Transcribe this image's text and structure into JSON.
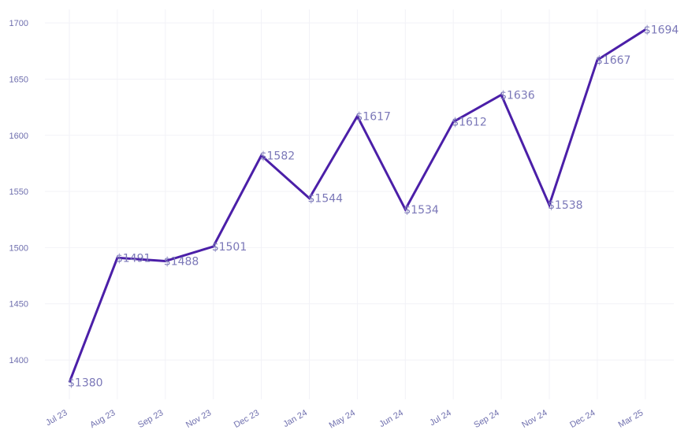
{
  "chart_data": {
    "type": "line",
    "categories": [
      "Jul 23",
      "Aug 23",
      "Sep 23",
      "Nov 23",
      "Dec 23",
      "Jan 24",
      "May 24",
      "Jun 24",
      "Jul 24",
      "Sep 24",
      "Nov 24",
      "Dec 24",
      "Mar 25"
    ],
    "series": [
      {
        "values": [
          1380,
          1491,
          1488,
          1501,
          1582,
          1544,
          1617,
          1534,
          1612,
          1636,
          1538,
          1667,
          1694
        ],
        "labels": [
          "$1380",
          "$1491",
          "$1488",
          "$1501",
          "$1582",
          "$1544",
          "$1617",
          "$1534",
          "$1612",
          "$1636",
          "$1538",
          "$1667",
          "$1694"
        ]
      }
    ],
    "yticks": [
      "1400",
      "1450",
      "1500",
      "1550",
      "1600",
      "1650",
      "1700"
    ],
    "ylim": [
      1365,
      1712
    ],
    "title": "",
    "xlabel": "",
    "ylabel": "",
    "grid": true,
    "legend": "none",
    "colors": {
      "line": "#4b1fa8",
      "label": "#7b78b8",
      "tick": "#6f6fae",
      "grid": "#f2f2f7"
    }
  }
}
